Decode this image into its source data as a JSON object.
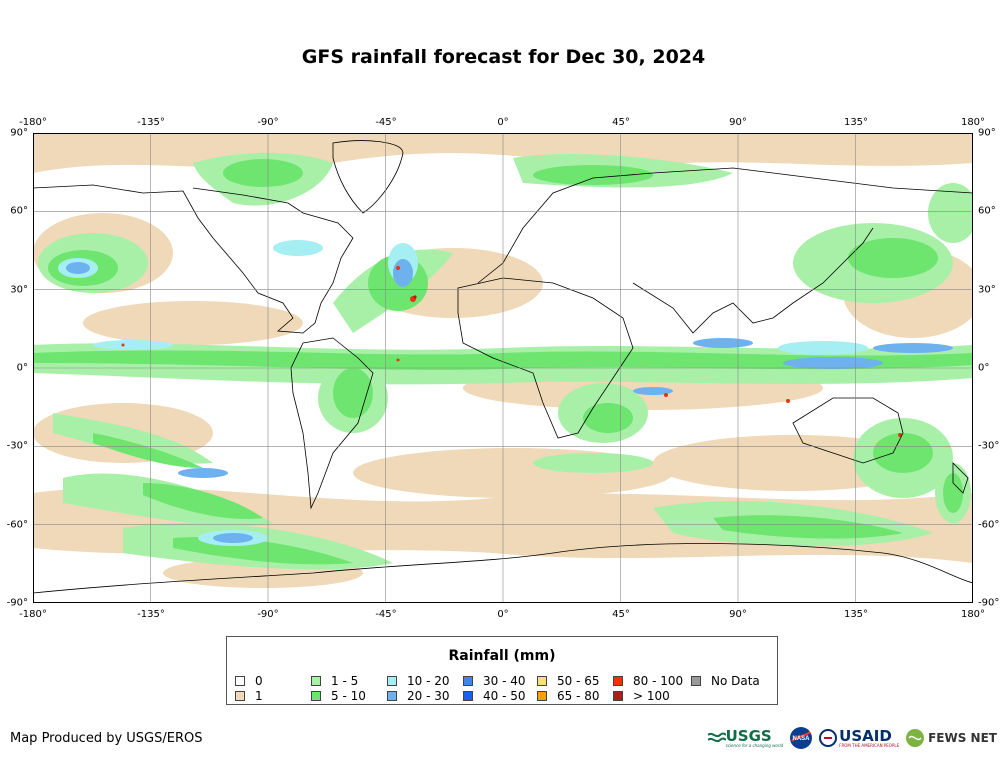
{
  "title": "GFS rainfall forecast for Dec 30, 2024",
  "map": {
    "longitude_ticks": [
      "-180°",
      "-135°",
      "-90°",
      "-45°",
      "0°",
      "45°",
      "90°",
      "135°",
      "180°"
    ],
    "latitude_ticks": [
      "90°",
      "60°",
      "30°",
      "0°",
      "-30°",
      "-60°",
      "-90°"
    ],
    "colors": {
      "ocean_bg": "#ffffff",
      "c1": "#efd9b8",
      "c1to5": "#a8f0a8",
      "c5to10": "#6ee56e",
      "c10to20": "#a5eef2",
      "c20to30": "#6db2ee",
      "c30to40": "#3d86ea",
      "c40to50": "#1a5ef0",
      "c80to100": "#f03010",
      "c100": "#a82018"
    }
  },
  "legend": {
    "title": "Rainfall (mm)",
    "items": [
      {
        "label": "0",
        "color": "#ffffff"
      },
      {
        "label": "1",
        "color": "#efd9b8"
      },
      {
        "label": "1 - 5",
        "color": "#a8f0a8"
      },
      {
        "label": "5 - 10",
        "color": "#6ee56e"
      },
      {
        "label": "10 - 20",
        "color": "#a5eef2"
      },
      {
        "label": "20 - 30",
        "color": "#6db2ee"
      },
      {
        "label": "30 - 40",
        "color": "#3d86ea"
      },
      {
        "label": "40 - 50",
        "color": "#1a5ef0"
      },
      {
        "label": "50 - 65",
        "color": "#f5e07a"
      },
      {
        "label": "65 - 80",
        "color": "#f5a000"
      },
      {
        "label": "80 - 100",
        "color": "#f03010"
      },
      {
        "label": "> 100",
        "color": "#a82018"
      },
      {
        "label": "No Data",
        "color": "#999999"
      }
    ]
  },
  "credit": "Map Produced by USGS/EROS",
  "logos": {
    "usgs": "USGS",
    "usgs_tagline": "science for a changing world",
    "nasa": "NASA",
    "usaid": "USAID",
    "usaid_tagline": "FROM THE AMERICAN PEOPLE",
    "fews": "FEWS NET"
  }
}
